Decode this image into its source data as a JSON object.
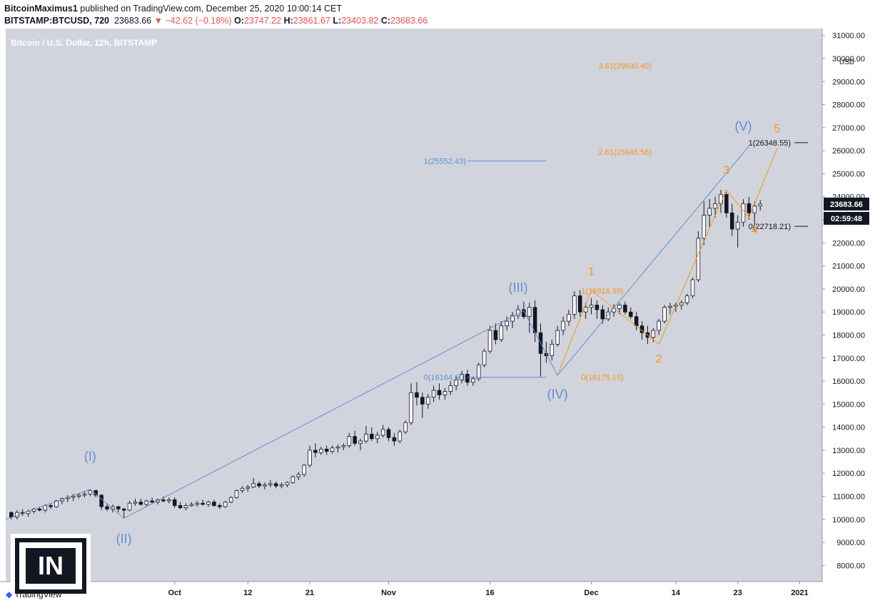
{
  "header": {
    "author": "BitcoinMaximus1",
    "published_text": "published on TradingView.com, December 25, 2020 10:00:14 CET",
    "symbol": "BITSTAMP:BTCUSD, 720",
    "last": "23683.66",
    "change": "−42.62 (−0.18%)",
    "o_label": "O:",
    "o_value": "23747.22",
    "h_label": "H:",
    "h_value": "23861.67",
    "l_label": "L:",
    "l_value": "23403.82",
    "c_label": "C:",
    "c_value": "23683.66"
  },
  "footer": {
    "tradingview": "TradingView",
    "watermark": "IN"
  },
  "colors": {
    "background": "#d1d4dc",
    "blue": "#5b8fd6",
    "orange": "#f7941d",
    "candle": "#131722"
  },
  "chart_data": {
    "type": "candlestick",
    "title": "Bitcoin / U.S. Dollar, 12h, BITSTAMP",
    "currency": "USD",
    "ylim": [
      7300,
      31300
    ],
    "y_ticks": [
      "31000.00",
      "30000.00",
      "29000.00",
      "28000.00",
      "27000.00",
      "26000.00",
      "25000.00",
      "24000.00",
      "23000.00",
      "22000.00",
      "21000.00",
      "20000.00",
      "19000.00",
      "18000.00",
      "17000.00",
      "16000.00",
      "15000.00",
      "14000.00",
      "13000.00",
      "12000.00",
      "11000.00",
      "10000.00",
      "9000.00",
      "8000.00"
    ],
    "x_range": [
      -1,
      144
    ],
    "x_ticks": [
      {
        "label": "Oct",
        "i": 29
      },
      {
        "label": "12",
        "i": 42
      },
      {
        "label": "21",
        "i": 53
      },
      {
        "label": "Nov",
        "i": 67
      },
      {
        "label": "16",
        "i": 85
      },
      {
        "label": "Dec",
        "i": 103
      },
      {
        "label": "14",
        "i": 118
      },
      {
        "label": "23",
        "i": 129
      },
      {
        "label": "2021",
        "i": 140
      }
    ],
    "last_price_label": "23683.66",
    "countdown_label": "02:59:48",
    "blue_wave": {
      "points": [
        [
          -1,
          10000
        ],
        [
          14,
          11300
        ],
        [
          20,
          10050
        ],
        [
          91,
          19050
        ],
        [
          97,
          16250
        ],
        [
          131,
          26200
        ]
      ],
      "labels": [
        {
          "t": "(I)",
          "i": 14,
          "p": 12550
        },
        {
          "t": "(II)",
          "i": 20,
          "p": 8980
        },
        {
          "t": "(III)",
          "i": 90,
          "p": 19870
        },
        {
          "t": "(IV)",
          "i": 97,
          "p": 15250
        },
        {
          "t": "(V)",
          "i": 130,
          "p": 26870
        }
      ]
    },
    "orange_wave": {
      "points": [
        [
          97,
          16250
        ],
        [
          103,
          19950
        ],
        [
          115,
          17600
        ],
        [
          127,
          24300
        ],
        [
          131,
          23100
        ],
        [
          136,
          26100
        ]
      ],
      "labels": [
        {
          "t": "1",
          "i": 103,
          "p": 20600
        },
        {
          "t": "2",
          "i": 115,
          "p": 16800
        },
        {
          "t": "3",
          "i": 127,
          "p": 25000
        },
        {
          "t": "4",
          "i": 132,
          "p": 22400
        },
        {
          "t": "5",
          "i": 136,
          "p": 26800
        }
      ]
    },
    "fib_blue": [
      {
        "label": "1(25552.43)",
        "price": 25552.43,
        "i0": 81,
        "i1": 95
      },
      {
        "label": "0(16164.60)",
        "price": 16164.6,
        "i0": 81,
        "i1": 95
      }
    ],
    "fib_orange": [
      {
        "label": "3.61(29690.40)",
        "price": 29690.4
      },
      {
        "label": "2.61(25946.56)",
        "price": 25946.56
      },
      {
        "label": "1(19918.99)",
        "price": 19918.99
      },
      {
        "label": "0(16175.15)",
        "price": 16175.15
      }
    ],
    "fib_black": [
      {
        "label": "1(26348.55)",
        "price": 26348.55
      },
      {
        "label": "0(22718.21)",
        "price": 22718.21
      }
    ],
    "candles": [
      [
        10300,
        10350,
        10000,
        10100
      ],
      [
        10100,
        10400,
        10000,
        10300
      ],
      [
        10300,
        10450,
        10150,
        10250
      ],
      [
        10250,
        10420,
        10120,
        10350
      ],
      [
        10350,
        10500,
        10250,
        10450
      ],
      [
        10450,
        10550,
        10350,
        10400
      ],
      [
        10400,
        10650,
        10300,
        10600
      ],
      [
        10600,
        10700,
        10450,
        10550
      ],
      [
        10550,
        10850,
        10500,
        10800
      ],
      [
        10800,
        10950,
        10650,
        10900
      ],
      [
        10900,
        11050,
        10750,
        10950
      ],
      [
        10950,
        11100,
        10800,
        11000
      ],
      [
        11000,
        11150,
        10900,
        11050
      ],
      [
        11050,
        11200,
        10950,
        11100
      ],
      [
        11100,
        11300,
        11000,
        11250
      ],
      [
        11250,
        11300,
        10950,
        11050
      ],
      [
        11050,
        11100,
        10400,
        10550
      ],
      [
        10550,
        10700,
        10350,
        10450
      ],
      [
        10450,
        10650,
        10300,
        10550
      ],
      [
        10550,
        10600,
        10300,
        10450
      ],
      [
        10450,
        10500,
        10050,
        10400
      ],
      [
        10400,
        10800,
        10350,
        10700
      ],
      [
        10700,
        10900,
        10600,
        10750
      ],
      [
        10750,
        10900,
        10600,
        10650
      ],
      [
        10650,
        10850,
        10550,
        10800
      ],
      [
        10800,
        10950,
        10700,
        10750
      ],
      [
        10750,
        10900,
        10650,
        10850
      ],
      [
        10850,
        11000,
        10750,
        10800
      ],
      [
        10800,
        10950,
        10700,
        10850
      ],
      [
        10850,
        10950,
        10500,
        10600
      ],
      [
        10600,
        10750,
        10450,
        10500
      ],
      [
        10500,
        10700,
        10400,
        10600
      ],
      [
        10600,
        10750,
        10550,
        10650
      ],
      [
        10650,
        10800,
        10550,
        10700
      ],
      [
        10700,
        10850,
        10600,
        10650
      ],
      [
        10650,
        10800,
        10550,
        10750
      ],
      [
        10750,
        10850,
        10550,
        10600
      ],
      [
        10600,
        10700,
        10450,
        10550
      ],
      [
        10550,
        10800,
        10500,
        10750
      ],
      [
        10750,
        11000,
        10700,
        10950
      ],
      [
        10950,
        11300,
        10900,
        11250
      ],
      [
        11250,
        11450,
        11150,
        11350
      ],
      [
        11350,
        11500,
        11200,
        11400
      ],
      [
        11400,
        11800,
        11350,
        11550
      ],
      [
        11550,
        11650,
        11350,
        11450
      ],
      [
        11450,
        11600,
        11300,
        11500
      ],
      [
        11500,
        11700,
        11400,
        11550
      ],
      [
        11550,
        11650,
        11350,
        11450
      ],
      [
        11450,
        11600,
        11350,
        11500
      ],
      [
        11500,
        11650,
        11400,
        11600
      ],
      [
        11600,
        11900,
        11550,
        11850
      ],
      [
        11850,
        12050,
        11700,
        11950
      ],
      [
        11950,
        12400,
        11850,
        12350
      ],
      [
        12350,
        13200,
        12250,
        13000
      ],
      [
        13000,
        13300,
        12700,
        12900
      ],
      [
        12900,
        13150,
        12800,
        13050
      ],
      [
        13050,
        13200,
        12800,
        12950
      ],
      [
        12950,
        13200,
        12850,
        13100
      ],
      [
        13100,
        13250,
        12900,
        13150
      ],
      [
        13150,
        13300,
        13000,
        13200
      ],
      [
        13200,
        13750,
        13100,
        13600
      ],
      [
        13600,
        13850,
        13200,
        13300
      ],
      [
        13300,
        13500,
        13000,
        13400
      ],
      [
        13400,
        14050,
        13300,
        13700
      ],
      [
        13700,
        14000,
        13400,
        13500
      ],
      [
        13500,
        13800,
        13300,
        13650
      ],
      [
        13650,
        14100,
        13550,
        13900
      ],
      [
        13900,
        14000,
        13400,
        13550
      ],
      [
        13550,
        13750,
        13200,
        13400
      ],
      [
        13400,
        13900,
        13300,
        13800
      ],
      [
        13800,
        14300,
        13700,
        14200
      ],
      [
        14200,
        15900,
        14100,
        15500
      ],
      [
        15500,
        15950,
        14950,
        15300
      ],
      [
        15300,
        15500,
        14400,
        15000
      ],
      [
        15000,
        15450,
        14800,
        15300
      ],
      [
        15300,
        15800,
        15100,
        15600
      ],
      [
        15600,
        15900,
        15200,
        15400
      ],
      [
        15400,
        15700,
        15200,
        15550
      ],
      [
        15550,
        16000,
        15400,
        15800
      ],
      [
        15800,
        16200,
        15600,
        16050
      ],
      [
        16050,
        16450,
        15900,
        16300
      ],
      [
        16300,
        16500,
        15800,
        15950
      ],
      [
        15950,
        16200,
        15800,
        16100
      ],
      [
        16100,
        16800,
        16000,
        16700
      ],
      [
        16700,
        17400,
        16600,
        17300
      ],
      [
        17300,
        18400,
        17200,
        18200
      ],
      [
        18200,
        18500,
        17600,
        17800
      ],
      [
        17800,
        18600,
        17700,
        18400
      ],
      [
        18400,
        18800,
        18200,
        18600
      ],
      [
        18600,
        19000,
        18300,
        18850
      ],
      [
        18850,
        19300,
        18700,
        19100
      ],
      [
        19100,
        19450,
        18700,
        18800
      ],
      [
        18800,
        19400,
        18100,
        19200
      ],
      [
        19200,
        19500,
        17700,
        18100
      ],
      [
        18100,
        18500,
        16200,
        17200
      ],
      [
        17200,
        17700,
        16800,
        17100
      ],
      [
        17100,
        17800,
        16900,
        17600
      ],
      [
        17600,
        18400,
        17500,
        18200
      ],
      [
        18200,
        18800,
        18000,
        18600
      ],
      [
        18600,
        19100,
        18400,
        18900
      ],
      [
        18900,
        19900,
        18700,
        19700
      ],
      [
        19700,
        19950,
        18800,
        19000
      ],
      [
        19000,
        19400,
        18700,
        19200
      ],
      [
        19200,
        19600,
        18900,
        19300
      ],
      [
        19300,
        19500,
        18700,
        19100
      ],
      [
        19100,
        19300,
        18500,
        18700
      ],
      [
        18700,
        19200,
        18600,
        19000
      ],
      [
        19000,
        19350,
        18800,
        19150
      ],
      [
        19150,
        19400,
        18900,
        19300
      ],
      [
        19300,
        19450,
        18900,
        19000
      ],
      [
        19000,
        19200,
        18700,
        18800
      ],
      [
        18800,
        19000,
        18200,
        18400
      ],
      [
        18400,
        18600,
        17800,
        18100
      ],
      [
        18100,
        18400,
        17600,
        17900
      ],
      [
        17900,
        18300,
        17700,
        18200
      ],
      [
        18200,
        18700,
        18000,
        18600
      ],
      [
        18600,
        19300,
        18500,
        19200
      ],
      [
        19200,
        19400,
        18900,
        19250
      ],
      [
        19250,
        19400,
        19000,
        19300
      ],
      [
        19300,
        19500,
        19100,
        19400
      ],
      [
        19400,
        19800,
        19300,
        19700
      ],
      [
        19700,
        20500,
        19600,
        20400
      ],
      [
        20400,
        22500,
        20300,
        22200
      ],
      [
        22200,
        23800,
        21900,
        23200
      ],
      [
        23200,
        23900,
        22700,
        23500
      ],
      [
        23500,
        24000,
        23100,
        23700
      ],
      [
        23700,
        24300,
        23300,
        24100
      ],
      [
        24100,
        24200,
        23100,
        23300
      ],
      [
        23300,
        23700,
        22300,
        22600
      ],
      [
        22600,
        23200,
        21800,
        22900
      ],
      [
        22900,
        23900,
        22700,
        23700
      ],
      [
        23700,
        24000,
        23000,
        23300
      ],
      [
        23300,
        23800,
        22800,
        23600
      ],
      [
        23600,
        23861,
        23403,
        23683
      ]
    ]
  }
}
